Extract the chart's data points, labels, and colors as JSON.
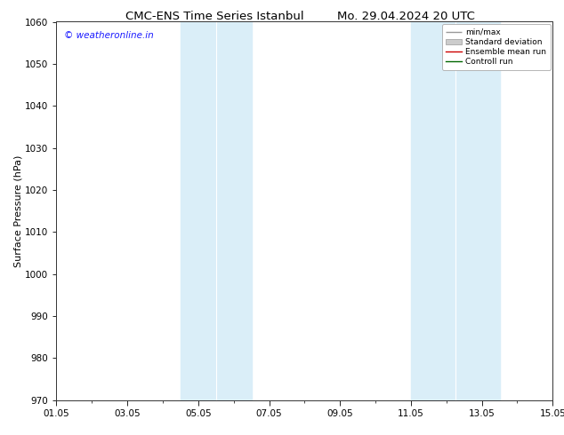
{
  "title_left": "CMC-ENS Time Series Istanbul",
  "title_right": "Mo. 29.04.2024 20 UTC",
  "ylabel": "Surface Pressure (hPa)",
  "ylim": [
    970,
    1060
  ],
  "yticks": [
    970,
    980,
    990,
    1000,
    1010,
    1020,
    1030,
    1040,
    1050,
    1060
  ],
  "xtick_labels": [
    "01.05",
    "03.05",
    "05.05",
    "07.05",
    "09.05",
    "11.05",
    "13.05",
    "15.05"
  ],
  "xtick_positions_days": [
    0,
    2,
    4,
    6,
    8,
    10,
    12,
    14
  ],
  "xlim": [
    0,
    14
  ],
  "shaded_bands": [
    {
      "start_day": 3.5,
      "end_day": 4.0
    },
    {
      "start_day": 4.0,
      "end_day": 5.5
    },
    {
      "start_day": 10.0,
      "end_day": 10.5
    },
    {
      "start_day": 10.5,
      "end_day": 12.5
    }
  ],
  "shade_color": "#daeef8",
  "watermark": "© weatheronline.in",
  "watermark_color": "#1a1aff",
  "legend_labels": [
    "min/max",
    "Standard deviation",
    "Ensemble mean run",
    "Controll run"
  ],
  "legend_line_color": "#999999",
  "legend_fill_color": "#cccccc",
  "legend_red": "#cc0000",
  "legend_green": "#006600",
  "background_color": "#ffffff",
  "title_fontsize": 9.5,
  "label_fontsize": 8,
  "tick_fontsize": 7.5,
  "watermark_fontsize": 7.5
}
